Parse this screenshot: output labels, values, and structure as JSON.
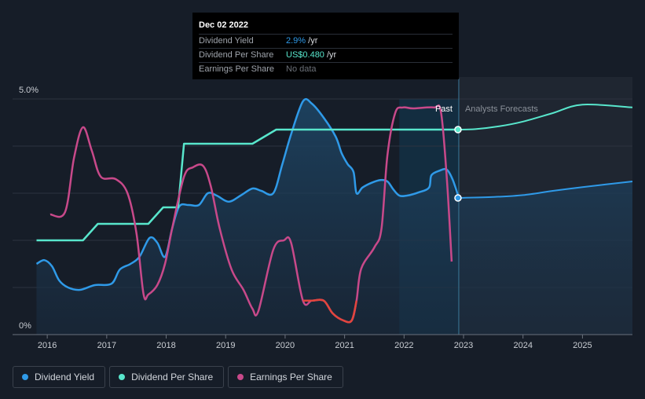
{
  "tooltip": {
    "date": "Dec 02 2022",
    "rows": [
      {
        "label": "Dividend Yield",
        "value": "2.9%",
        "suffix": " /yr"
      },
      {
        "label": "Dividend Per Share",
        "value": "US$0.480",
        "suffix": " /yr"
      },
      {
        "label": "Earnings Per Share",
        "value": "No data",
        "suffix": ""
      }
    ]
  },
  "legend": [
    {
      "label": "Dividend Yield",
      "color": "#2f9ae8"
    },
    {
      "label": "Dividend Per Share",
      "color": "#58e6cc"
    },
    {
      "label": "Earnings Per Share",
      "color": "#c8498a"
    }
  ],
  "chart_data": {
    "type": "line",
    "y_ticks": [
      "5.0%",
      "0%"
    ],
    "ylim": [
      0,
      5.0
    ],
    "x_ticks": [
      "2016",
      "2017",
      "2018",
      "2019",
      "2020",
      "2021",
      "2022",
      "2023",
      "2024",
      "2025"
    ],
    "xlim": [
      2015.8,
      2025.84
    ],
    "region_labels": {
      "past": "Past",
      "forecast": "Analysts Forecasts"
    },
    "past_end": 2022.92,
    "highlight_start": 2021.92,
    "colors": {
      "yield": "#2f9ae8",
      "dps": "#58e6cc",
      "eps": "#c8498a",
      "eps_negative": "#e2453d"
    },
    "series": [
      {
        "name": "Dividend Yield",
        "points": [
          [
            2015.82,
            1.5
          ],
          [
            2015.95,
            1.58
          ],
          [
            2016.08,
            1.45
          ],
          [
            2016.2,
            1.15
          ],
          [
            2016.35,
            1.0
          ],
          [
            2016.55,
            0.95
          ],
          [
            2016.8,
            1.05
          ],
          [
            2017.08,
            1.08
          ],
          [
            2017.22,
            1.38
          ],
          [
            2017.4,
            1.5
          ],
          [
            2017.55,
            1.65
          ],
          [
            2017.72,
            2.05
          ],
          [
            2017.85,
            1.95
          ],
          [
            2017.98,
            1.65
          ],
          [
            2018.1,
            2.25
          ],
          [
            2018.22,
            2.72
          ],
          [
            2018.38,
            2.75
          ],
          [
            2018.55,
            2.75
          ],
          [
            2018.7,
            3.0
          ],
          [
            2018.85,
            2.95
          ],
          [
            2019.05,
            2.82
          ],
          [
            2019.25,
            2.95
          ],
          [
            2019.45,
            3.1
          ],
          [
            2019.6,
            3.05
          ],
          [
            2019.8,
            3.0
          ],
          [
            2019.95,
            3.6
          ],
          [
            2020.1,
            4.25
          ],
          [
            2020.3,
            4.95
          ],
          [
            2020.45,
            4.9
          ],
          [
            2020.65,
            4.6
          ],
          [
            2020.85,
            4.2
          ],
          [
            2020.95,
            3.85
          ],
          [
            2021.05,
            3.62
          ],
          [
            2021.15,
            3.45
          ],
          [
            2021.2,
            3.0
          ],
          [
            2021.3,
            3.12
          ],
          [
            2021.45,
            3.22
          ],
          [
            2021.6,
            3.28
          ],
          [
            2021.72,
            3.25
          ],
          [
            2021.82,
            3.08
          ],
          [
            2021.92,
            2.95
          ],
          [
            2022.05,
            2.95
          ],
          [
            2022.25,
            3.02
          ],
          [
            2022.42,
            3.12
          ],
          [
            2022.46,
            3.38
          ],
          [
            2022.6,
            3.48
          ],
          [
            2022.72,
            3.5
          ],
          [
            2022.82,
            3.28
          ],
          [
            2022.92,
            2.9
          ],
          [
            2023.5,
            2.92
          ],
          [
            2024.0,
            2.96
          ],
          [
            2024.5,
            3.05
          ],
          [
            2025.0,
            3.13
          ],
          [
            2025.84,
            3.25
          ]
        ]
      },
      {
        "name": "Dividend Per Share",
        "points": [
          [
            2015.82,
            2.0
          ],
          [
            2016.6,
            2.0
          ],
          [
            2016.85,
            2.35
          ],
          [
            2017.7,
            2.35
          ],
          [
            2017.95,
            2.7
          ],
          [
            2018.2,
            2.7
          ],
          [
            2018.3,
            4.05
          ],
          [
            2019.45,
            4.05
          ],
          [
            2019.85,
            4.35
          ],
          [
            2022.92,
            4.35
          ],
          [
            2023.2,
            4.36
          ],
          [
            2023.6,
            4.42
          ],
          [
            2024.0,
            4.52
          ],
          [
            2024.5,
            4.7
          ],
          [
            2025.0,
            4.88
          ],
          [
            2025.84,
            4.82
          ]
        ]
      },
      {
        "name": "Earnings Per Share",
        "points": [
          [
            2016.05,
            2.55
          ],
          [
            2016.3,
            2.6
          ],
          [
            2016.45,
            3.75
          ],
          [
            2016.6,
            4.4
          ],
          [
            2016.75,
            3.9
          ],
          [
            2016.9,
            3.35
          ],
          [
            2017.15,
            3.3
          ],
          [
            2017.35,
            3.0
          ],
          [
            2017.5,
            2.15
          ],
          [
            2017.62,
            0.85
          ],
          [
            2017.7,
            0.85
          ],
          [
            2017.85,
            1.05
          ],
          [
            2017.98,
            1.5
          ],
          [
            2018.1,
            2.25
          ],
          [
            2018.3,
            3.35
          ],
          [
            2018.45,
            3.55
          ],
          [
            2018.62,
            3.58
          ],
          [
            2018.75,
            3.15
          ],
          [
            2018.9,
            2.25
          ],
          [
            2019.1,
            1.38
          ],
          [
            2019.3,
            0.95
          ],
          [
            2019.45,
            0.55
          ],
          [
            2019.55,
            0.5
          ],
          [
            2019.8,
            1.8
          ],
          [
            2019.98,
            2.0
          ],
          [
            2020.1,
            1.95
          ],
          [
            2020.3,
            0.72
          ],
          [
            2020.45,
            0.72
          ],
          [
            2020.65,
            0.72
          ],
          [
            2020.8,
            0.45
          ],
          [
            2020.98,
            0.3
          ],
          [
            2021.12,
            0.3
          ],
          [
            2021.2,
            0.72
          ],
          [
            2021.28,
            1.4
          ],
          [
            2021.5,
            1.85
          ],
          [
            2021.62,
            2.25
          ],
          [
            2021.72,
            3.8
          ],
          [
            2021.85,
            4.7
          ],
          [
            2021.98,
            4.82
          ],
          [
            2022.15,
            4.8
          ],
          [
            2022.5,
            4.82
          ],
          [
            2022.62,
            4.72
          ],
          [
            2022.72,
            3.3
          ],
          [
            2022.8,
            1.55
          ]
        ]
      }
    ]
  }
}
